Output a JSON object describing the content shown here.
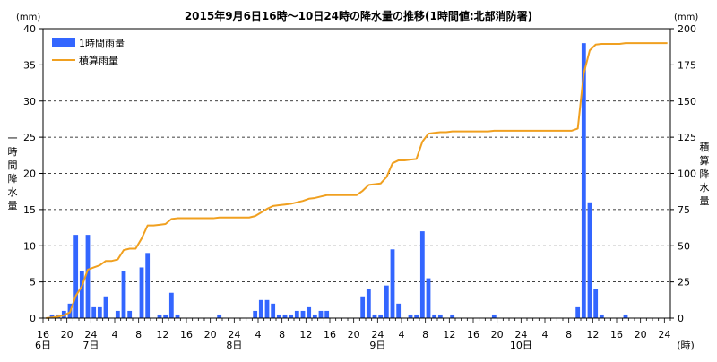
{
  "chart_data": {
    "type": "bar",
    "title": "2015年9月6日16時～10日24時の降水量の推移(1時間値:北部消防署)",
    "y_left": {
      "unit": "(mm)",
      "label_chars": [
        "一",
        "時",
        "間",
        "降",
        "水",
        "量"
      ],
      "ylim": [
        0,
        40
      ],
      "ticks": [
        "0",
        "5",
        "10",
        "15",
        "20",
        "25",
        "30",
        "35",
        "40"
      ]
    },
    "y_right": {
      "unit": "(mm)",
      "label_chars": [
        "積",
        "算",
        "降",
        "水",
        "量"
      ],
      "ylim": [
        0,
        200
      ],
      "ticks": [
        "0",
        "25",
        "50",
        "75",
        "100",
        "125",
        "150",
        "175",
        "200"
      ]
    },
    "x_axis": {
      "unit": "(時)",
      "hour_ticks": [
        "16",
        "20",
        "24",
        "4",
        "8",
        "12",
        "16",
        "20",
        "24",
        "4",
        "8",
        "12",
        "16",
        "20",
        "24",
        "4",
        "8",
        "12",
        "16",
        "20",
        "24",
        "4",
        "8",
        "12",
        "16",
        "20",
        "24"
      ],
      "day_labels": [
        {
          "text": "6日",
          "index": 0
        },
        {
          "text": "7日",
          "index": 8
        },
        {
          "text": "8日",
          "index": 32
        },
        {
          "text": "9日",
          "index": 56
        },
        {
          "text": "10日",
          "index": 80
        }
      ]
    },
    "grid": true,
    "legend_position": "top-left",
    "series": [
      {
        "name": "1時間雨量",
        "kind": "bar",
        "axis": "left",
        "color": "#3366ff",
        "values": [
          0,
          0.5,
          0.5,
          1,
          2,
          11.5,
          6.5,
          11.5,
          1.5,
          1.5,
          3,
          0,
          1,
          6.5,
          1,
          0,
          7,
          9,
          0,
          0.5,
          0.5,
          3.5,
          0.5,
          0,
          0,
          0,
          0,
          0,
          0,
          0.5,
          0,
          0,
          0,
          0,
          0,
          1,
          2.5,
          2.5,
          2,
          0.5,
          0.5,
          0.5,
          1,
          1,
          1.5,
          0.5,
          1,
          1,
          0,
          0,
          0,
          0,
          0,
          3,
          4,
          0.5,
          0.5,
          4.5,
          9.5,
          2,
          0,
          0.5,
          0.5,
          12,
          5.5,
          0.5,
          0.5,
          0,
          0.5,
          0,
          0,
          0,
          0,
          0,
          0,
          0.5,
          0,
          0,
          0,
          0,
          0,
          0,
          0,
          0,
          0,
          0,
          0,
          0,
          0,
          1.5,
          38,
          16,
          4,
          0.5,
          0,
          0,
          0,
          0.5,
          0,
          0,
          0,
          0,
          0,
          0,
          0
        ]
      },
      {
        "name": "積算雨量",
        "kind": "line",
        "axis": "right",
        "color": "#f0a020",
        "values": [
          0,
          0.5,
          1,
          2,
          4,
          15.5,
          22,
          33.5,
          35,
          36.5,
          39.5,
          39.5,
          40.5,
          47,
          48,
          48,
          55,
          64,
          64,
          64.5,
          65,
          68.5,
          69,
          69,
          69,
          69,
          69,
          69,
          69,
          69.5,
          69.5,
          69.5,
          69.5,
          69.5,
          69.5,
          70.5,
          73,
          75.5,
          77.5,
          78,
          78.5,
          79,
          80,
          81,
          82.5,
          83,
          84,
          85,
          85,
          85,
          85,
          85,
          85,
          88,
          92,
          92.5,
          93,
          97.5,
          107,
          109,
          109,
          109.5,
          110,
          122,
          127.5,
          128,
          128.5,
          128.5,
          129,
          129,
          129,
          129,
          129,
          129,
          129,
          129.5,
          129.5,
          129.5,
          129.5,
          129.5,
          129.5,
          129.5,
          129.5,
          129.5,
          129.5,
          129.5,
          129.5,
          129.5,
          129.5,
          131,
          169,
          185,
          189,
          189.5,
          189.5,
          189.5,
          189.5,
          190,
          190,
          190,
          190,
          190,
          190,
          190,
          190
        ]
      }
    ]
  }
}
